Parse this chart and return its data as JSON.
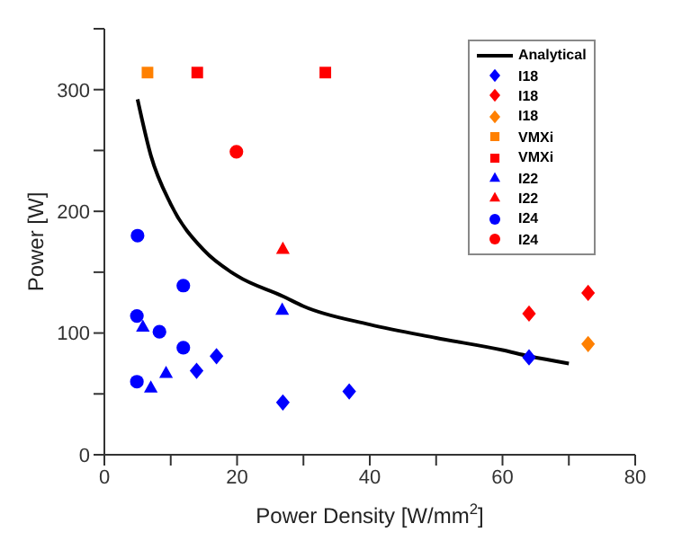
{
  "chart_data": {
    "type": "scatter",
    "xlabel": "Power Density [W/mm$^{2}$]",
    "ylabel": "Power [W]",
    "xlim": [
      0,
      80
    ],
    "xticks": [
      0,
      {
        "value": 10,
        "label": null
      },
      20,
      {
        "value": 30,
        "label": null
      },
      40,
      {
        "value": 50,
        "label": null
      },
      60,
      {
        "value": 70,
        "label": null
      },
      80
    ],
    "ylim": [
      0,
      350
    ],
    "yticks": [
      0,
      {
        "value": 50,
        "label": null
      },
      100,
      {
        "value": 150,
        "label": null
      },
      200,
      {
        "value": 250,
        "label": null
      },
      300,
      {
        "value": 350,
        "label": null
      }
    ],
    "grid": false,
    "legend": "top right",
    "series": [
      {
        "name": "Analytical",
        "type": "line",
        "color": "#000000",
        "marker": "none",
        "line_style": "solid",
        "x": [
          5,
          7,
          10,
          15,
          20,
          27,
          30,
          40,
          50,
          60,
          64,
          70
        ],
        "values": [
          292,
          246,
          206,
          168,
          147,
          130,
          122,
          107,
          96,
          86,
          81,
          75
        ]
      },
      {
        "name": "I18",
        "color": "#0000ff",
        "marker": "diamond",
        "x": [
          13.9,
          16.9,
          26.9,
          36.9,
          64
        ],
        "values": [
          69,
          81,
          43,
          52,
          80
        ]
      },
      {
        "name": "I18",
        "color": "#ff0000",
        "marker": "diamond",
        "x": [
          64,
          72.9
        ],
        "values": [
          116,
          133
        ]
      },
      {
        "name": "I18",
        "color": "#ff8000",
        "marker": "diamond",
        "x": [
          72.9
        ],
        "values": [
          91
        ]
      },
      {
        "name": "VMXi",
        "color": "#ff8000",
        "marker": "square",
        "x": [
          6.5
        ],
        "values": [
          314
        ]
      },
      {
        "name": "VMXi",
        "color": "#ff0000",
        "marker": "square",
        "x": [
          14,
          33.3
        ],
        "values": [
          314,
          314
        ]
      },
      {
        "name": "I22",
        "color": "#0000ff",
        "marker": "triangle",
        "x": [
          5.8,
          7,
          9.3,
          26.8
        ],
        "values": [
          105,
          55,
          67,
          119
        ]
      },
      {
        "name": "I22",
        "color": "#ff0000",
        "marker": "triangle",
        "x": [
          26.9
        ],
        "values": [
          169
        ]
      },
      {
        "name": "I24",
        "color": "#0000ff",
        "marker": "circle",
        "x": [
          5,
          4.9,
          8.3,
          11.9,
          11.9,
          4.9
        ],
        "values": [
          180,
          114,
          101,
          88,
          139,
          60
        ]
      },
      {
        "name": "I24",
        "color": "#ff0000",
        "marker": "circle",
        "x": [
          19.9
        ],
        "values": [
          249
        ]
      }
    ]
  }
}
